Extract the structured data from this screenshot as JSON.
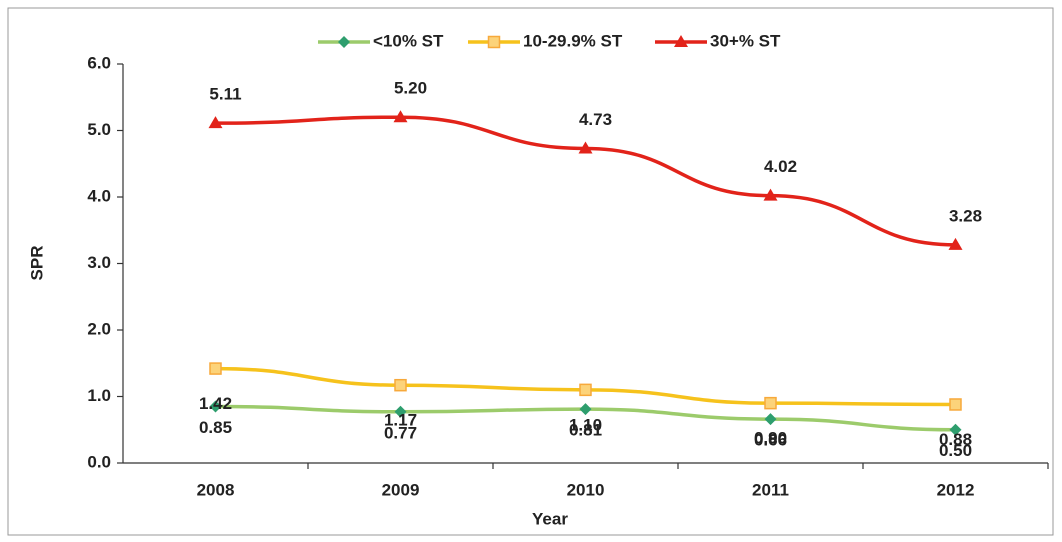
{
  "chart_data": {
    "type": "line",
    "categories": [
      "2008",
      "2009",
      "2010",
      "2011",
      "2012"
    ],
    "series": [
      {
        "name": "<10% ST",
        "color": "#9ccb6b",
        "marker_color": "#2e9e6e",
        "marker": "diamond",
        "values": [
          0.85,
          0.77,
          0.81,
          0.66,
          0.5
        ],
        "value_labels": [
          "0.85",
          "0.77",
          "0.81",
          "0.66",
          "0.50"
        ]
      },
      {
        "name": "10-29.9% ST",
        "color": "#f6c21c",
        "marker_color": "#f7a93b",
        "marker": "square",
        "values": [
          1.42,
          1.17,
          1.1,
          0.9,
          0.88
        ],
        "value_labels": [
          "1.42",
          "1.17",
          "1.10",
          "0.90",
          "0.88"
        ]
      },
      {
        "name": "30+% ST",
        "color": "#e2231a",
        "marker_color": "#e2231a",
        "marker": "triangle",
        "values": [
          5.11,
          5.2,
          4.73,
          4.02,
          3.28
        ],
        "value_labels": [
          "5.11",
          "5.20",
          "4.73",
          "4.02",
          "3.28"
        ]
      }
    ],
    "xlabel": "Year",
    "ylabel": "SPR",
    "ylim": [
      0,
      6
    ],
    "yticks": [
      {
        "value": 0,
        "label": "0.0"
      },
      {
        "value": 1,
        "label": "1.0"
      },
      {
        "value": 2,
        "label": "2.0"
      },
      {
        "value": 3,
        "label": "3.0"
      },
      {
        "value": 4,
        "label": "4.0"
      },
      {
        "value": 5,
        "label": "5.0"
      },
      {
        "value": 6,
        "label": "6.0"
      }
    ],
    "legend": "top",
    "grid": false
  }
}
